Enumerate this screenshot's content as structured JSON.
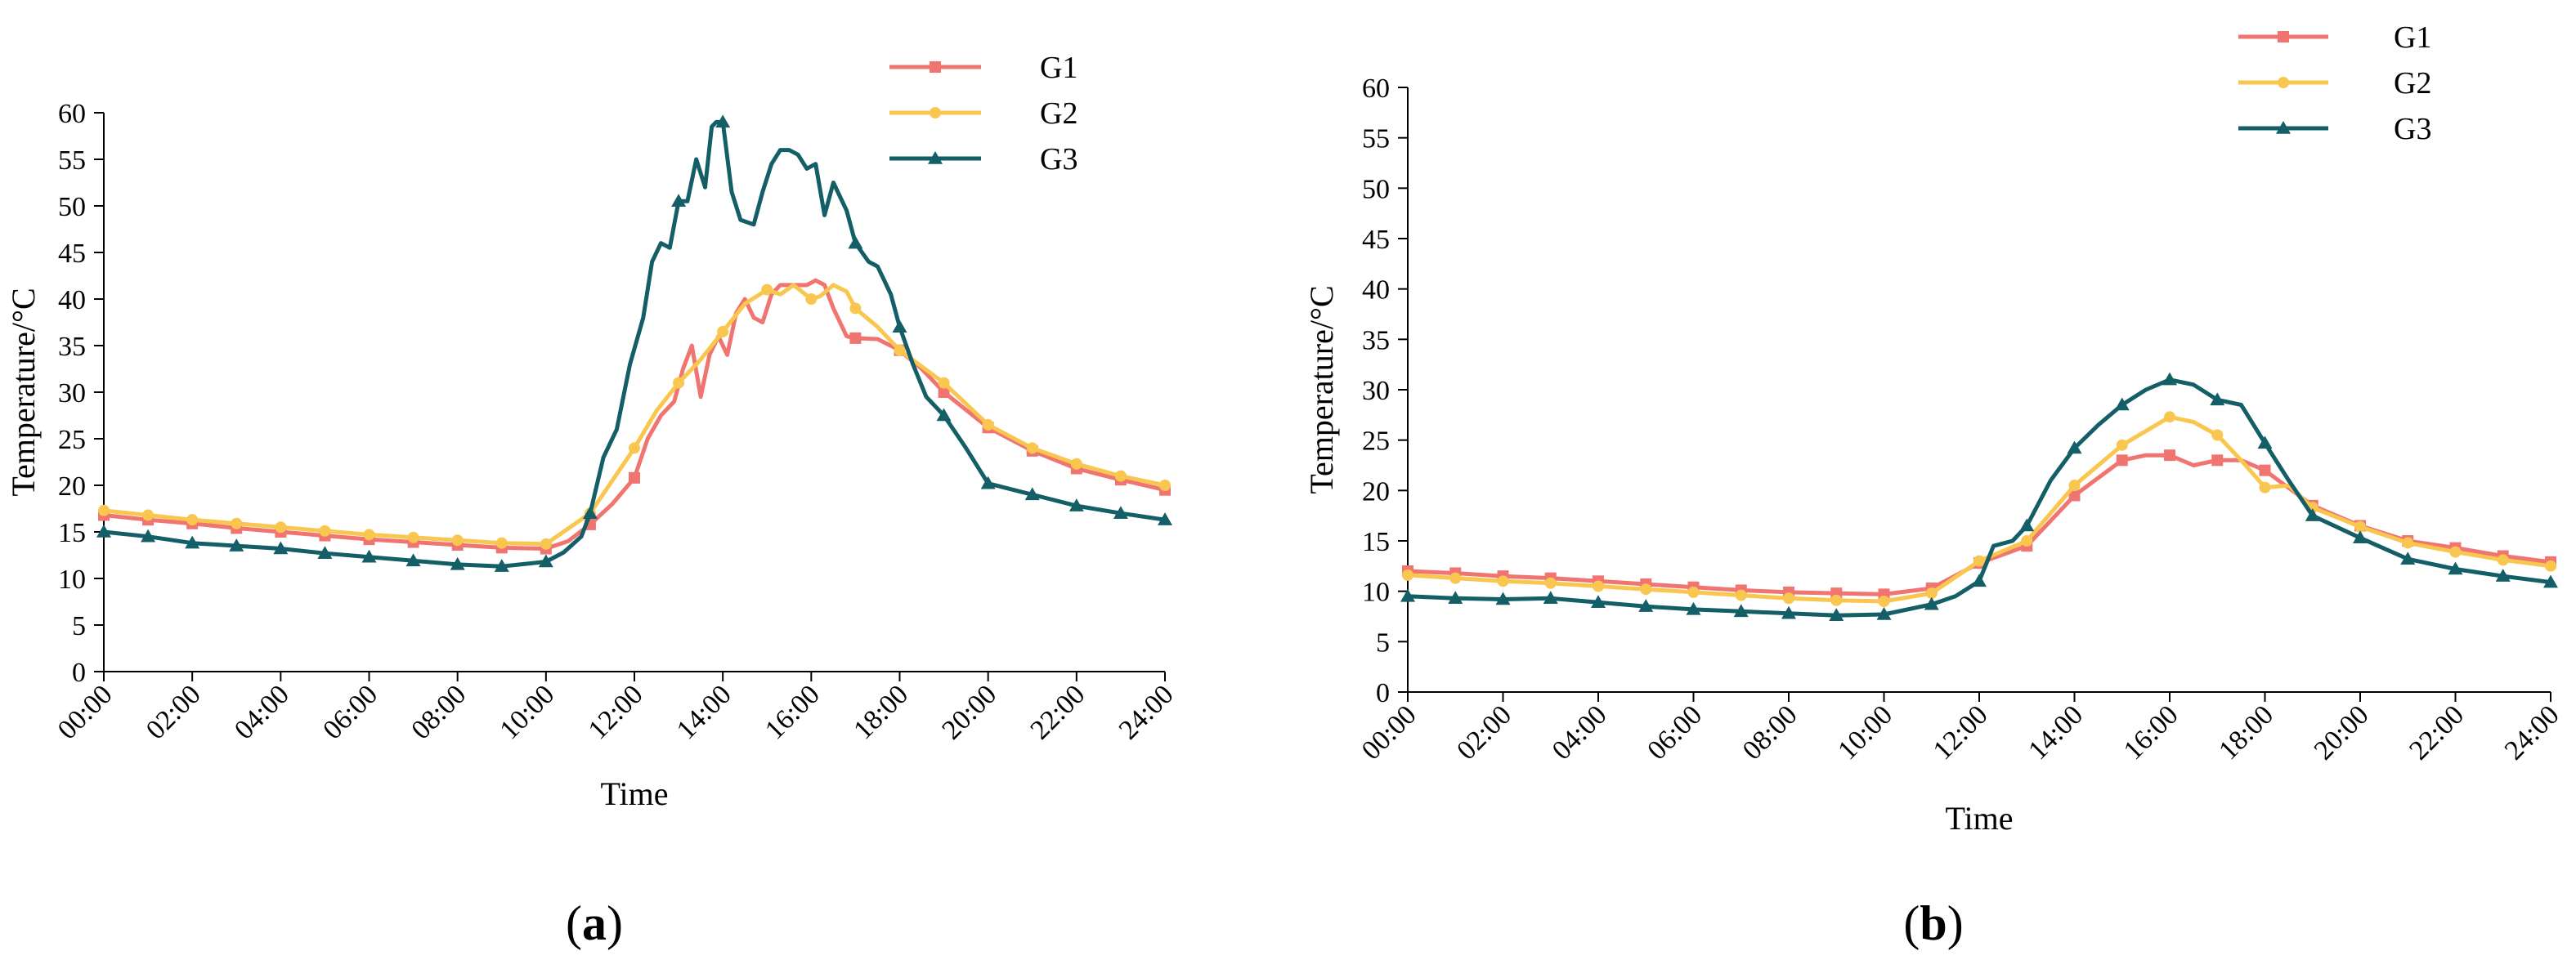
{
  "colors": {
    "G1": "#f07470",
    "G2": "#f9c74f",
    "G3": "#135e67"
  },
  "chart_data": [
    {
      "type": "line",
      "panel_label": "a",
      "xlabel": "Time",
      "ylabel": "Temperature/°C",
      "xlim": [
        0,
        24
      ],
      "ylim": [
        0,
        60
      ],
      "yticks": [
        0,
        5,
        10,
        15,
        20,
        25,
        30,
        35,
        40,
        45,
        50,
        55,
        60
      ],
      "xtick_labels": [
        "00:00",
        "02:00",
        "04:00",
        "06:00",
        "08:00",
        "10:00",
        "12:00",
        "14:00",
        "16:00",
        "18:00",
        "20:00",
        "22:00",
        "24:00"
      ],
      "legend": [
        "G1",
        "G2",
        "G3"
      ],
      "series": [
        {
          "name": "G1",
          "marker": "square",
          "x": [
            0,
            1,
            2,
            3,
            4,
            5,
            6,
            7,
            8,
            9,
            10,
            10.5,
            11,
            11.5,
            12,
            12.3,
            12.6,
            12.9,
            13.1,
            13.3,
            13.5,
            13.7,
            13.9,
            14.1,
            14.3,
            14.5,
            14.7,
            14.9,
            15.1,
            15.3,
            15.5,
            15.7,
            15.9,
            16.1,
            16.3,
            16.5,
            16.8,
            17,
            17.5,
            18,
            18.5,
            19,
            20,
            21,
            22,
            23,
            24
          ],
          "values": [
            16.8,
            16.3,
            15.9,
            15.4,
            15.0,
            14.6,
            14.2,
            13.9,
            13.6,
            13.3,
            13.2,
            14.0,
            15.8,
            18.0,
            20.8,
            25.0,
            27.5,
            29.0,
            32.5,
            35.0,
            29.5,
            34.0,
            36.0,
            34.0,
            38.5,
            40.0,
            38.0,
            37.5,
            40.5,
            41.5,
            41.5,
            41.5,
            41.5,
            42.0,
            41.5,
            39.0,
            36.0,
            35.8,
            35.7,
            34.5,
            32.5,
            30.0,
            26.2,
            23.7,
            21.8,
            20.6,
            19.5
          ]
        },
        {
          "name": "G2",
          "marker": "circle",
          "x": [
            0,
            1,
            2,
            3,
            4,
            5,
            6,
            7,
            8,
            9,
            10,
            11,
            12,
            12.5,
            13,
            13.5,
            14,
            14.5,
            15,
            15.3,
            15.6,
            16,
            16.2,
            16.5,
            16.8,
            17,
            17.5,
            18,
            19,
            20,
            21,
            22,
            23,
            24
          ],
          "values": [
            17.3,
            16.8,
            16.3,
            15.9,
            15.5,
            15.1,
            14.7,
            14.4,
            14.1,
            13.8,
            13.7,
            17.0,
            24.0,
            28.0,
            31.0,
            33.5,
            36.5,
            39.5,
            41.0,
            40.5,
            41.5,
            40.0,
            40.3,
            41.5,
            40.8,
            39.0,
            37.0,
            34.5,
            31.0,
            26.5,
            24.0,
            22.3,
            21.0,
            20.0
          ]
        },
        {
          "name": "G3",
          "marker": "triangle",
          "x": [
            0,
            1,
            2,
            3,
            4,
            5,
            6,
            7,
            8,
            9,
            10,
            10.4,
            10.8,
            11,
            11.3,
            11.6,
            11.9,
            12.2,
            12.4,
            12.6,
            12.8,
            13,
            13.2,
            13.4,
            13.6,
            13.75,
            13.85,
            14,
            14.2,
            14.4,
            14.7,
            14.9,
            15.1,
            15.3,
            15.5,
            15.7,
            15.9,
            16.1,
            16.3,
            16.5,
            16.8,
            17,
            17.3,
            17.5,
            17.8,
            18,
            18.3,
            18.6,
            19,
            19.5,
            20,
            21,
            22,
            23,
            24
          ],
          "values": [
            15.0,
            14.5,
            13.8,
            13.5,
            13.2,
            12.7,
            12.3,
            11.9,
            11.5,
            11.3,
            11.8,
            12.8,
            14.5,
            17.0,
            23.0,
            26.0,
            33.0,
            38.0,
            44.0,
            46.0,
            45.5,
            50.5,
            50.5,
            55.0,
            52.0,
            58.5,
            59.0,
            59.0,
            51.5,
            48.5,
            48.0,
            51.5,
            54.5,
            56.0,
            56.0,
            55.5,
            54.0,
            54.5,
            49.0,
            52.5,
            49.5,
            46.0,
            44.0,
            43.5,
            40.5,
            37.0,
            33.0,
            29.5,
            27.5,
            24.0,
            20.2,
            19.0,
            17.8,
            17.0,
            16.3
          ]
        }
      ]
    },
    {
      "type": "line",
      "panel_label": "b",
      "xlabel": "Time",
      "ylabel": "Temperature/°C",
      "xlim": [
        0,
        24
      ],
      "ylim": [
        0,
        60
      ],
      "yticks": [
        0,
        5,
        10,
        15,
        20,
        25,
        30,
        35,
        40,
        45,
        50,
        55,
        60
      ],
      "xtick_labels": [
        "00:00",
        "02:00",
        "04:00",
        "06:00",
        "08:00",
        "10:00",
        "12:00",
        "14:00",
        "16:00",
        "18:00",
        "20:00",
        "22:00",
        "24:00"
      ],
      "legend": [
        "G1",
        "G2",
        "G3"
      ],
      "series": [
        {
          "name": "G1",
          "marker": "square",
          "x": [
            0,
            1,
            2,
            3,
            4,
            5,
            6,
            7,
            8,
            9,
            10,
            11,
            12,
            13,
            14,
            15,
            15.5,
            16,
            16.5,
            17,
            17.5,
            18,
            19,
            20,
            21,
            22,
            23,
            24
          ],
          "values": [
            12.0,
            11.8,
            11.5,
            11.3,
            11.0,
            10.7,
            10.4,
            10.1,
            9.9,
            9.8,
            9.7,
            10.3,
            12.8,
            14.5,
            19.5,
            23.0,
            23.5,
            23.5,
            22.5,
            23.0,
            23.0,
            22.0,
            18.5,
            16.5,
            15.0,
            14.3,
            13.5,
            12.9
          ]
        },
        {
          "name": "G2",
          "marker": "circle",
          "x": [
            0,
            1,
            2,
            3,
            4,
            5,
            6,
            7,
            8,
            9,
            10,
            11,
            12,
            13,
            14,
            15,
            16,
            16.5,
            17,
            17.5,
            18,
            18.5,
            19,
            20,
            21,
            22,
            23,
            24
          ],
          "values": [
            11.6,
            11.3,
            11.0,
            10.8,
            10.5,
            10.2,
            9.9,
            9.6,
            9.3,
            9.1,
            9.0,
            9.8,
            13.0,
            15.0,
            20.5,
            24.5,
            27.3,
            26.8,
            25.5,
            23.0,
            20.3,
            20.5,
            18.3,
            16.4,
            14.8,
            13.9,
            13.1,
            12.5
          ]
        },
        {
          "name": "G3",
          "marker": "triangle",
          "x": [
            0,
            1,
            2,
            3,
            4,
            5,
            6,
            7,
            8,
            9,
            10,
            11,
            11.5,
            12,
            12.3,
            12.7,
            13,
            13.5,
            14,
            14.5,
            15,
            15.5,
            16,
            16.5,
            17,
            17.5,
            18,
            18.5,
            19,
            20,
            21,
            22,
            23,
            24
          ],
          "values": [
            9.5,
            9.3,
            9.2,
            9.3,
            8.9,
            8.5,
            8.2,
            8.0,
            7.8,
            7.6,
            7.7,
            8.7,
            9.5,
            11.0,
            14.5,
            15.0,
            16.5,
            21.0,
            24.2,
            26.5,
            28.5,
            30.0,
            31.0,
            30.5,
            29.0,
            28.5,
            24.7,
            21.0,
            17.5,
            15.3,
            13.2,
            12.2,
            11.5,
            10.9
          ]
        }
      ]
    }
  ]
}
